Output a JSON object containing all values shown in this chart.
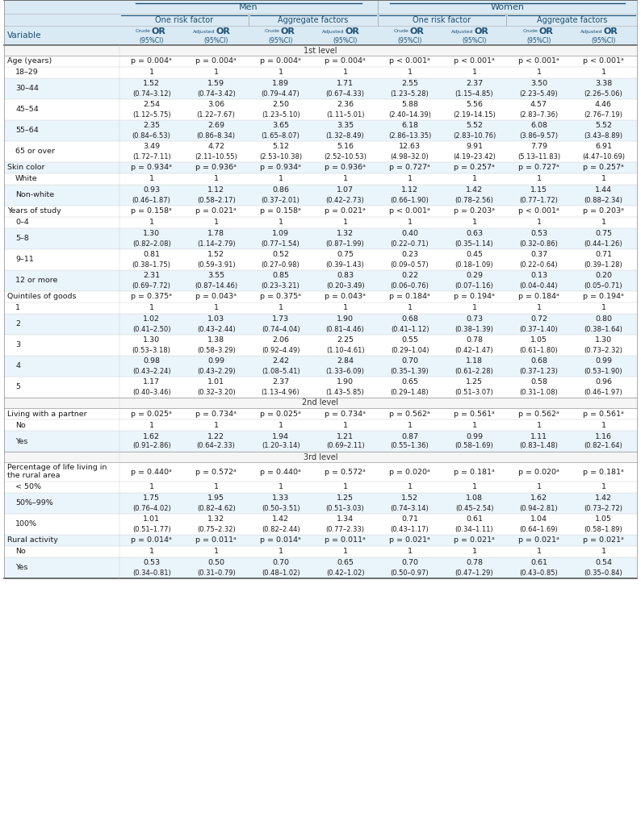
{
  "header_bg": "#daeaf5",
  "row_alt_bg": "#eaf4fb",
  "row_white_bg": "#ffffff",
  "level_bg": "#f5f5f5",
  "col_text_blue": "#1a4f72",
  "text_color": "#1a1a1a",
  "col_props": [
    0.182,
    0.102,
    0.102,
    0.102,
    0.102,
    0.102,
    0.102,
    0.102,
    0.102
  ],
  "rows": [
    {
      "label": "Age (years)",
      "indent": 0,
      "type": "pvalue",
      "values": [
        "p = 0.004ᵃ",
        "p = 0.004ᵃ",
        "p = 0.004ᵃ",
        "p = 0.004ᵃ",
        "p < 0.001ᵃ",
        "p < 0.001ᵃ",
        "p < 0.001ᵃ",
        "p < 0.001ᵃ"
      ]
    },
    {
      "label": "18–29",
      "indent": 1,
      "type": "ref",
      "values": [
        "1",
        "1",
        "1",
        "1",
        "1",
        "1",
        "1",
        "1"
      ]
    },
    {
      "label": "30–44",
      "indent": 1,
      "type": "data",
      "values": [
        "1.52\n(0.74–3.12)",
        "1.59\n(0.74–3.42)",
        "1.89\n(0.79–4.47)",
        "1.71\n(0.67–4.33)",
        "2.55\n(1.23–5.28)",
        "2.37\n(1.15–4.85)",
        "3.50\n(2.23–5.49)",
        "3.38\n(2.26–5.06)"
      ]
    },
    {
      "label": "45–54",
      "indent": 1,
      "type": "data",
      "values": [
        "2.54\n(1.12–5.75)",
        "3.06\n(1.22–7.67)",
        "2.50\n(1.23–5.10)",
        "2.36\n(1.11–5.01)",
        "5.88\n(2.40–14.39)",
        "5.56\n(2.19–14.15)",
        "4.57\n(2.83–7.36)",
        "4.46\n(2.76–7.19)"
      ]
    },
    {
      "label": "55–64",
      "indent": 1,
      "type": "data",
      "values": [
        "2.35\n(0.84–6.53)",
        "2.69\n(0.86–8.34)",
        "3.65\n(1.65–8.07)",
        "3.35\n(1.32–8.49)",
        "6.18\n(2.86–13.35)",
        "5.52\n(2.83–10.76)",
        "6.08\n(3.86–9.57)",
        "5.52\n(3.43–8.89)"
      ]
    },
    {
      "label": "65 or over",
      "indent": 1,
      "type": "data",
      "values": [
        "3.49\n(1.72–7.11)",
        "4.72\n(2.11–10.55)",
        "5.12\n(2.53–10.38)",
        "5.16\n(2.52–10.53)",
        "12.63\n(4.98–32.0)",
        "9.91\n(4.19–23.42)",
        "7.79\n(5.13–11.83)",
        "6.91\n(4.47–10.69)"
      ]
    },
    {
      "label": "Skin color",
      "indent": 0,
      "type": "pvalue",
      "values": [
        "p = 0.934ᵃ",
        "p = 0.936ᵃ",
        "p = 0.934ᵃ",
        "p = 0.936ᵃ",
        "p = 0.727ᵃ",
        "p = 0.257ᵃ",
        "p = 0.727ᵃ",
        "p = 0.257ᵃ"
      ]
    },
    {
      "label": "White",
      "indent": 1,
      "type": "ref",
      "values": [
        "1",
        "1",
        "1",
        "1",
        "1",
        "1",
        "1",
        "1"
      ]
    },
    {
      "label": "Non-white",
      "indent": 1,
      "type": "data",
      "values": [
        "0.93\n(0.46–1.87)",
        "1.12\n(0.58–2.17)",
        "0.86\n(0.37–2.01)",
        "1.07\n(0.42–2.73)",
        "1.12\n(0.66–1.90)",
        "1.42\n(0.78–2.56)",
        "1.15\n(0.77–1.72)",
        "1.44\n(0.88–2.34)"
      ]
    },
    {
      "label": "Years of study",
      "indent": 0,
      "type": "pvalue",
      "values": [
        "p = 0.158ᵃ",
        "p = 0.021ᵃ",
        "p = 0.158ᵃ",
        "p = 0.021ᵃ",
        "p < 0.001ᵃ",
        "p = 0.203ᵃ",
        "p < 0.001ᵃ",
        "p = 0.203ᵃ"
      ]
    },
    {
      "label": "0–4",
      "indent": 1,
      "type": "ref",
      "values": [
        "1",
        "1",
        "1",
        "1",
        "1",
        "1",
        "1",
        "1"
      ]
    },
    {
      "label": "5–8",
      "indent": 1,
      "type": "data",
      "values": [
        "1.30\n(0.82–2.08)",
        "1.78\n(1.14–2.79)",
        "1.09\n(0.77–1.54)",
        "1.32\n(0.87–1.99)",
        "0.40\n(0.22–0.71)",
        "0.63\n(0.35–1.14)",
        "0.53\n(0.32–0.86)",
        "0.75\n(0.44–1.26)"
      ]
    },
    {
      "label": "9–11",
      "indent": 1,
      "type": "data",
      "values": [
        "0.81\n(0.38–1.75)",
        "1.52\n(0.59–3.91)",
        "0.52\n(0.27–0.98)",
        "0.75\n(0.39–1.43)",
        "0.23\n(0.09–0.57)",
        "0.45\n(0.18–1.09)",
        "0.37\n(0.22–0.64)",
        "0.71\n(0.39–1.28)"
      ]
    },
    {
      "label": "12 or more",
      "indent": 1,
      "type": "data",
      "values": [
        "2.31\n(0.69–7.72)",
        "3.55\n(0.87–14.46)",
        "0.85\n(0.23–3.21)",
        "0.83\n(0.20–3.49)",
        "0.22\n(0.06–0.76)",
        "0.29\n(0.07–1.16)",
        "0.13\n(0.04–0.44)",
        "0.20\n(0.05–0.71)"
      ]
    },
    {
      "label": "Quintiles of goods",
      "indent": 0,
      "type": "pvalue",
      "values": [
        "p = 0.375ᵃ",
        "p = 0.043ᵃ",
        "p = 0.375ᵃ",
        "p = 0.043ᵃ",
        "p = 0.184ᵃ",
        "p = 0.194ᵃ",
        "p = 0.184ᵃ",
        "p = 0.194ᵃ"
      ]
    },
    {
      "label": "1",
      "indent": 1,
      "type": "ref",
      "values": [
        "1",
        "1",
        "1",
        "1",
        "1",
        "1",
        "1",
        "1"
      ]
    },
    {
      "label": "2",
      "indent": 1,
      "type": "data",
      "values": [
        "1.02\n(0.41–2.50)",
        "1.03\n(0.43–2.44)",
        "1.73\n(0.74–4.04)",
        "1.90\n(0.81–4.46)",
        "0.68\n(0.41–1.12)",
        "0.73\n(0.38–1.39)",
        "0.72\n(0.37–1.40)",
        "0.80\n(0.38–1.64)"
      ]
    },
    {
      "label": "3",
      "indent": 1,
      "type": "data",
      "values": [
        "1.30\n(0.53–3.18)",
        "1.38\n(0.58–3.29)",
        "2.06\n(0.92–4.49)",
        "2.25\n(1.10–4.61)",
        "0.55\n(0.29–1.04)",
        "0.78\n(0.42–1.47)",
        "1.05\n(0.61–1.80)",
        "1.30\n(0.73–2.32)"
      ]
    },
    {
      "label": "4",
      "indent": 1,
      "type": "data",
      "values": [
        "0.98\n(0.43–2.24)",
        "0.99\n(0.43–2.29)",
        "2.42\n(1.08–5.41)",
        "2.84\n(1.33–6.09)",
        "0.70\n(0.35–1.39)",
        "1.18\n(0.61–2.28)",
        "0.68\n(0.37–1.23)",
        "0.99\n(0.53–1.90)"
      ]
    },
    {
      "label": "5",
      "indent": 1,
      "type": "data",
      "values": [
        "1.17\n(0.40–3.46)",
        "1.01\n(0.32–3.20)",
        "2.37\n(1.13–4.96)",
        "1.90\n(1.43–5.85)",
        "0.65\n(0.29–1.48)",
        "1.25\n(0.51–3.07)",
        "0.58\n(0.31–1.08)",
        "0.96\n(0.46–1.97)"
      ]
    },
    {
      "label": "2nd level",
      "indent": 0,
      "type": "level"
    },
    {
      "label": "Living with a partner",
      "indent": 0,
      "type": "pvalue",
      "values": [
        "p = 0.025ᵃ",
        "p = 0.734ᵃ",
        "p = 0.025ᵃ",
        "p = 0.734ᵃ",
        "p = 0.562ᵃ",
        "p = 0.561ᵃ",
        "p = 0.562ᵃ",
        "p = 0.561ᵃ"
      ]
    },
    {
      "label": "No",
      "indent": 1,
      "type": "ref",
      "values": [
        "1",
        "1",
        "1",
        "1",
        "1",
        "1",
        "1",
        "1"
      ]
    },
    {
      "label": "Yes",
      "indent": 1,
      "type": "data",
      "values": [
        "1.62\n(0.91–2.86)",
        "1.22\n(0.64–2.33)",
        "1.94\n(1.20–3.14)",
        "1.21\n(0.69–2.11)",
        "0.87\n(0.55–1.36)",
        "0.99\n(0.58–1.69)",
        "1.11\n(0.83–1.48)",
        "1.16\n(0.82–1.64)"
      ]
    },
    {
      "label": "3rd level",
      "indent": 0,
      "type": "level"
    },
    {
      "label": "Percentage of life living in\nthe rural area",
      "indent": 0,
      "type": "pvalue2",
      "values": [
        "p = 0.440ᵃ",
        "p = 0.572ᵃ",
        "p = 0.440ᵃ",
        "p = 0.572ᵃ",
        "p = 0.020ᵃ",
        "p = 0.181ᵃ",
        "p = 0.020ᵃ",
        "p = 0.181ᵃ"
      ]
    },
    {
      "label": "< 50%",
      "indent": 1,
      "type": "ref",
      "values": [
        "1",
        "1",
        "1",
        "1",
        "1",
        "1",
        "1",
        "1"
      ]
    },
    {
      "label": "50%–99%",
      "indent": 1,
      "type": "data",
      "values": [
        "1.75\n(0.76–4.02)",
        "1.95\n(0.82–4.62)",
        "1.33\n(0.50–3.51)",
        "1.25\n(0.51–3.03)",
        "1.52\n(0.74–3.14)",
        "1.08\n(0.45–2.54)",
        "1.62\n(0.94–2.81)",
        "1.42\n(0.73–2.72)"
      ]
    },
    {
      "label": "100%",
      "indent": 1,
      "type": "data",
      "values": [
        "1.01\n(0.51–1.77)",
        "1.32\n(0.75–2.32)",
        "1.42\n(0.82–2.44)",
        "1.34\n(0.77–2.33)",
        "0.71\n(0.43–1.17)",
        "0.61\n(0.34–1.11)",
        "1.04\n(0.64–1.69)",
        "1.05\n(0.58–1.89)"
      ]
    },
    {
      "label": "Rural activity",
      "indent": 0,
      "type": "pvalue",
      "values": [
        "p = 0.014ᵃ",
        "p = 0.011ᵃ",
        "p = 0.014ᵃ",
        "p = 0.011ᵃ",
        "p = 0.021ᵃ",
        "p = 0.021ᵃ",
        "p = 0.021ᵃ",
        "p = 0.021ᵃ"
      ]
    },
    {
      "label": "No",
      "indent": 1,
      "type": "ref",
      "values": [
        "1",
        "1",
        "1",
        "1",
        "1",
        "1",
        "1",
        "1"
      ]
    },
    {
      "label": "Yes",
      "indent": 1,
      "type": "data",
      "values": [
        "0.53\n(0.34–0.81)",
        "0.50\n(0.31–0.79)",
        "0.70\n(0.48–1.02)",
        "0.65\n(0.42–1.02)",
        "0.70\n(0.50–0.97)",
        "0.78\n(0.47–1.29)",
        "0.61\n(0.43–0.85)",
        "0.54\n(0.35–0.84)"
      ]
    }
  ]
}
